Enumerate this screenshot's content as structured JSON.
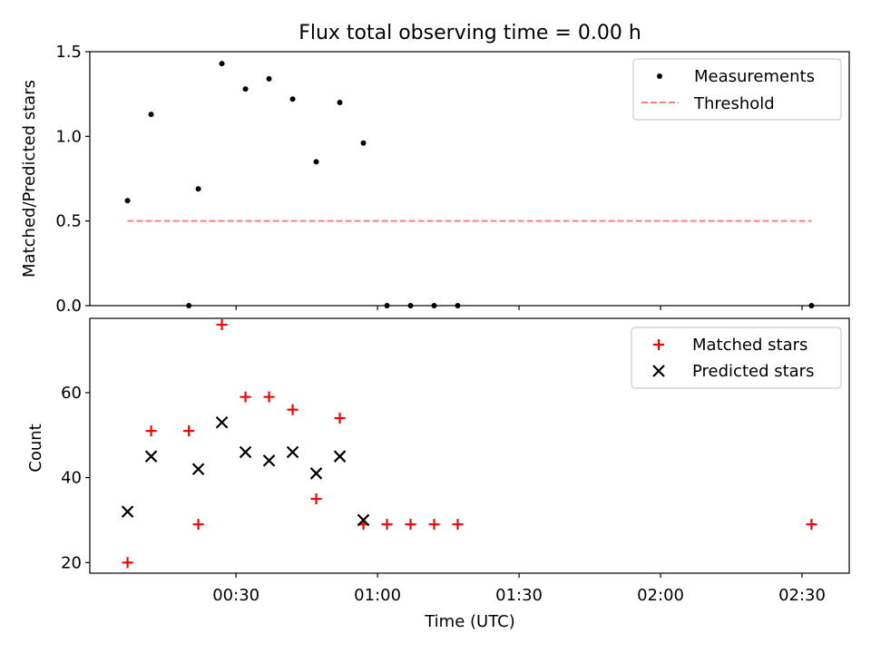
{
  "title": "Flux total observing time = 0.00 h",
  "chart_data": [
    {
      "type": "scatter",
      "xlabel": "",
      "ylabel": "Matched/Predicted stars",
      "xlim_minutes": [
        -1,
        160
      ],
      "ylim": [
        0,
        1.5
      ],
      "y_ticks": [
        {
          "value": 0.0,
          "label": "0.0"
        },
        {
          "value": 0.5,
          "label": "0.5"
        },
        {
          "value": 1.0,
          "label": "1.0"
        },
        {
          "value": 1.5,
          "label": "1.5"
        }
      ],
      "x_ticks_minutes": [
        30,
        60,
        90,
        120,
        150
      ],
      "legend": {
        "placement": "top-right",
        "entries": [
          "Measurements",
          "Threshold"
        ]
      },
      "series": [
        {
          "name": "Measurements",
          "marker": "dot",
          "color": "#000000",
          "points": [
            [
              "00:07",
              0.62
            ],
            [
              "00:12",
              1.13
            ],
            [
              "00:20",
              0.0
            ],
            [
              "00:22",
              0.69
            ],
            [
              "00:27",
              1.43
            ],
            [
              "00:32",
              1.28
            ],
            [
              "00:37",
              1.34
            ],
            [
              "00:42",
              1.22
            ],
            [
              "00:47",
              0.85
            ],
            [
              "00:52",
              1.2
            ],
            [
              "00:57",
              0.96
            ],
            [
              "01:02",
              0.0
            ],
            [
              "01:07",
              0.0
            ],
            [
              "01:12",
              0.0
            ],
            [
              "01:17",
              0.0
            ],
            [
              "02:32",
              0.0
            ]
          ]
        },
        {
          "name": "Threshold",
          "style": "dashed",
          "color": "#ff7f7f",
          "points": [
            [
              "00:07",
              0.5
            ],
            [
              "02:32",
              0.5
            ]
          ]
        }
      ]
    },
    {
      "type": "scatter",
      "xlabel": "Time (UTC)",
      "ylabel": "Count",
      "xlim_minutes": [
        -1,
        160
      ],
      "ylim": [
        17.5,
        77.5
      ],
      "y_ticks": [
        {
          "value": 20,
          "label": "20"
        },
        {
          "value": 40,
          "label": "40"
        },
        {
          "value": 60,
          "label": "60"
        }
      ],
      "x_ticks": [
        {
          "minutes": 30,
          "label": "00:30"
        },
        {
          "minutes": 60,
          "label": "01:00"
        },
        {
          "minutes": 90,
          "label": "01:30"
        },
        {
          "minutes": 120,
          "label": "02:00"
        },
        {
          "minutes": 150,
          "label": "02:30"
        }
      ],
      "legend": {
        "placement": "top-right",
        "entries": [
          "Matched stars",
          "Predicted stars"
        ]
      },
      "series": [
        {
          "name": "Matched stars",
          "marker": "plus",
          "color": "#ff0000",
          "points": [
            [
              "00:07",
              20
            ],
            [
              "00:12",
              51
            ],
            [
              "00:20",
              51
            ],
            [
              "00:22",
              29
            ],
            [
              "00:27",
              76
            ],
            [
              "00:32",
              59
            ],
            [
              "00:37",
              59
            ],
            [
              "00:42",
              56
            ],
            [
              "00:47",
              35
            ],
            [
              "00:52",
              54
            ],
            [
              "00:57",
              29
            ],
            [
              "01:02",
              29
            ],
            [
              "01:07",
              29
            ],
            [
              "01:12",
              29
            ],
            [
              "01:17",
              29
            ],
            [
              "02:32",
              29
            ]
          ]
        },
        {
          "name": "Predicted stars",
          "marker": "x",
          "color": "#000000",
          "points": [
            [
              "00:07",
              32
            ],
            [
              "00:12",
              45
            ],
            [
              "00:22",
              42
            ],
            [
              "00:27",
              53
            ],
            [
              "00:32",
              46
            ],
            [
              "00:37",
              44
            ],
            [
              "00:42",
              46
            ],
            [
              "00:47",
              41
            ],
            [
              "00:52",
              45
            ],
            [
              "00:57",
              30
            ]
          ]
        }
      ]
    }
  ]
}
